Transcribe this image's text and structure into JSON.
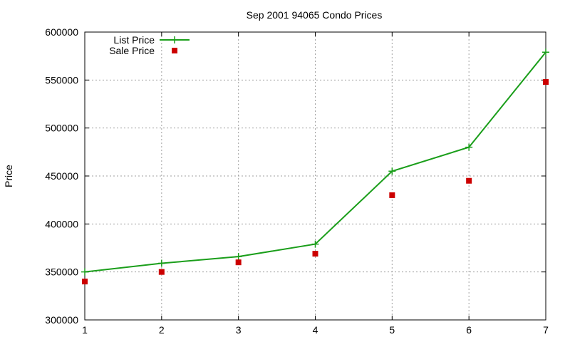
{
  "chart_data": {
    "type": "line",
    "title": "Sep 2001 94065 Condo Prices",
    "xlabel": "",
    "ylabel": "Price",
    "xlim": [
      1,
      7
    ],
    "ylim": [
      300000,
      600000
    ],
    "x_ticks": [
      "1",
      "2",
      "3",
      "4",
      "5",
      "6",
      "7"
    ],
    "y_ticks": [
      "300000",
      "350000",
      "400000",
      "450000",
      "500000",
      "550000",
      "600000"
    ],
    "grid": true,
    "legend_position": "top-left",
    "x": [
      1,
      2,
      3,
      4,
      5,
      6,
      7
    ],
    "series": [
      {
        "name": "List Price",
        "style": "line with plus markers",
        "color": "#1a9e1a",
        "values": [
          350000,
          359000,
          366000,
          379000,
          455000,
          480000,
          579000
        ]
      },
      {
        "name": "Sale Price",
        "style": "square points",
        "color": "#cc0000",
        "values": [
          340000,
          350000,
          360000,
          369000,
          430000,
          445000,
          548000
        ]
      }
    ]
  }
}
